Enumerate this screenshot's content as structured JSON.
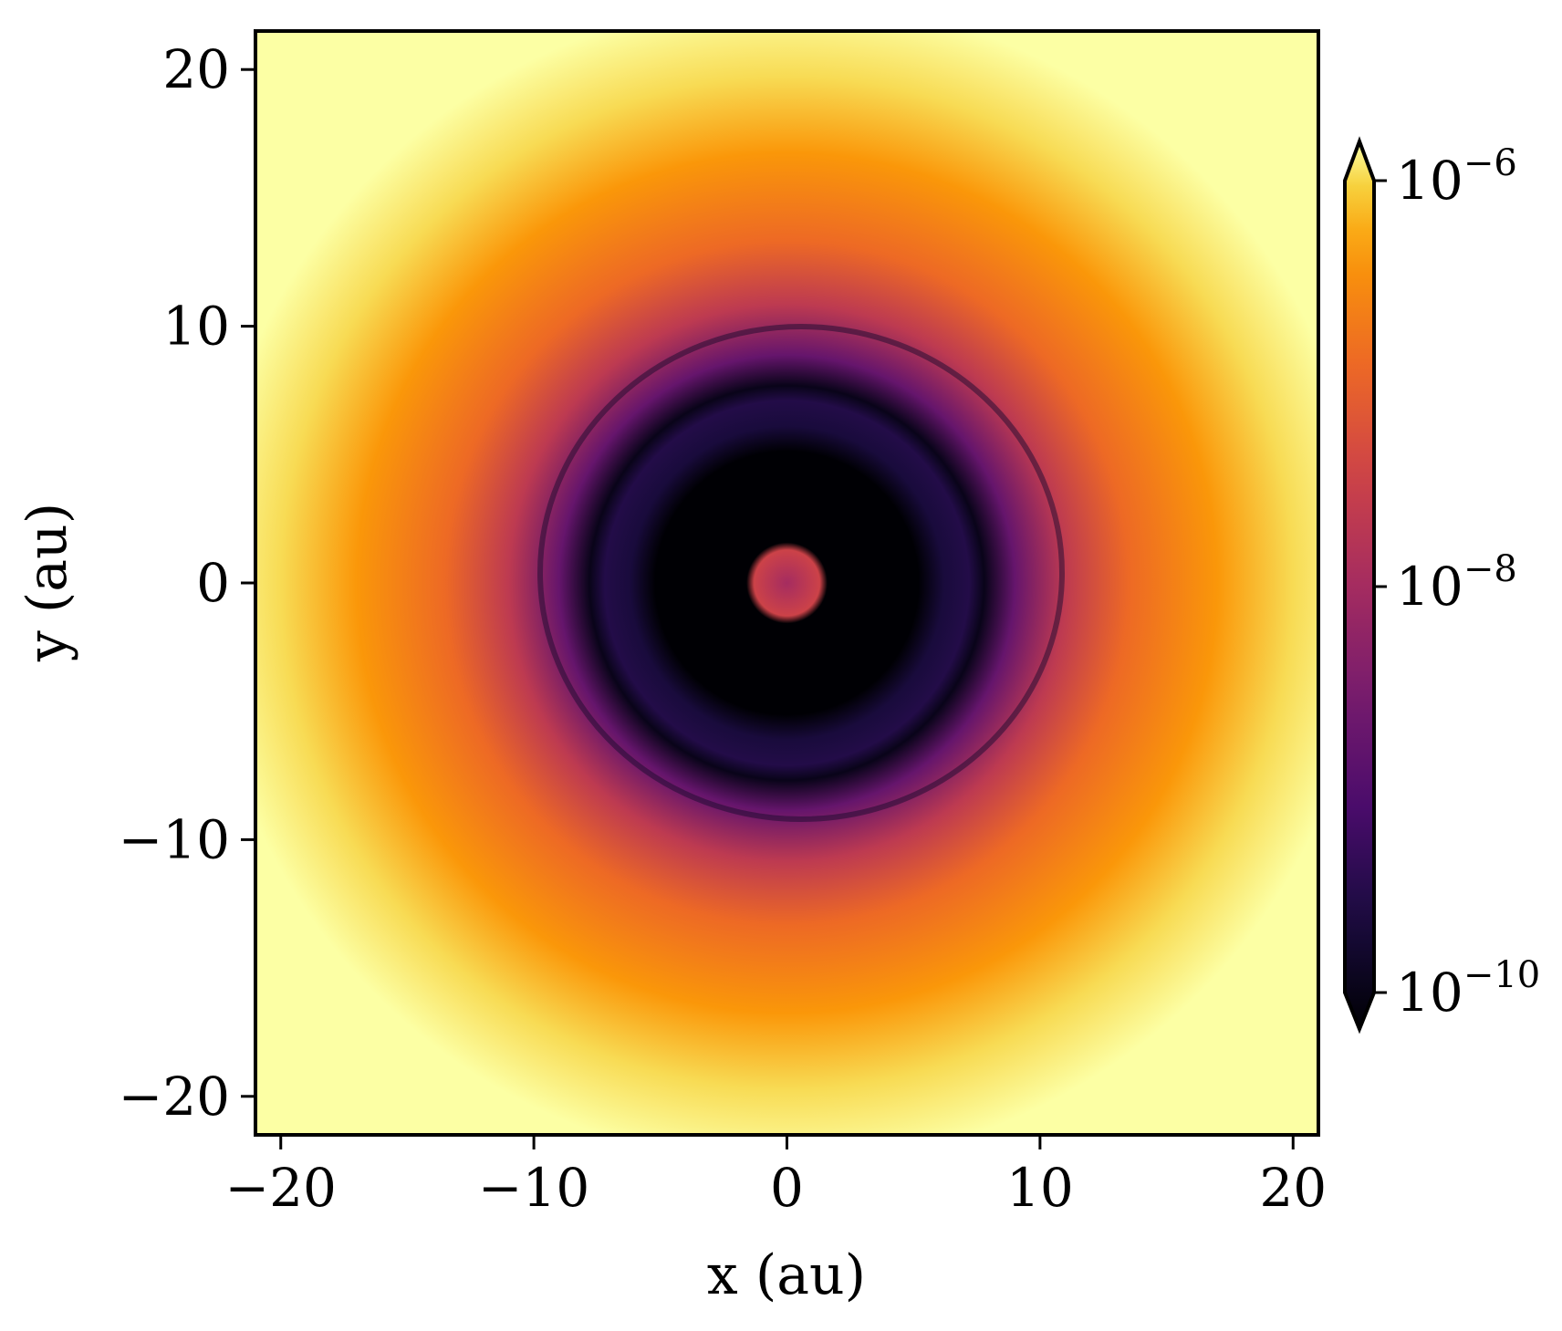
{
  "chart_data": {
    "type": "heatmap",
    "title": "",
    "xlabel": "x (au)",
    "ylabel": "y (au)",
    "xlim": [
      -21,
      21
    ],
    "ylim": [
      -21.5,
      21.5
    ],
    "x_ticks": [
      -20,
      -10,
      0,
      10,
      20
    ],
    "y_ticks": [
      -20,
      -10,
      0,
      10,
      20
    ],
    "x_tick_labels": [
      "−20",
      "−10",
      "0",
      "10",
      "20"
    ],
    "y_tick_labels": [
      "−20",
      "−10",
      "0",
      "10",
      "20"
    ],
    "grid": false,
    "colormap": "inferno",
    "colorbar": {
      "scale": "log",
      "extend": "both",
      "range": [
        1e-10,
        1e-06
      ],
      "ticks": [
        {
          "value": 1e-06,
          "base": "10",
          "exponent": "−6"
        },
        {
          "value": 1e-08,
          "base": "10",
          "exponent": "−8"
        },
        {
          "value": 1e-10,
          "base": "10",
          "exponent": "−10"
        }
      ]
    },
    "radial_profile": [
      {
        "r": 0,
        "value": 1e-08
      },
      {
        "r": 1.3,
        "value": 3e-08
      },
      {
        "r": 1.6,
        "value": 1e-10
      },
      {
        "r": 5.2,
        "value": 1e-10
      },
      {
        "r": 6.2,
        "value": 3e-10
      },
      {
        "r": 7.2,
        "value": 4e-10
      },
      {
        "r": 7.8,
        "value": 1.5e-10
      },
      {
        "r": 9.0,
        "value": 2e-09
      },
      {
        "r": 11.0,
        "value": 2e-08
      },
      {
        "r": 13.5,
        "value": 1e-07
      },
      {
        "r": 17.0,
        "value": 3e-07
      },
      {
        "r": 20.0,
        "value": 7e-07
      },
      {
        "r": 23.0,
        "value": 1e-06
      }
    ]
  }
}
